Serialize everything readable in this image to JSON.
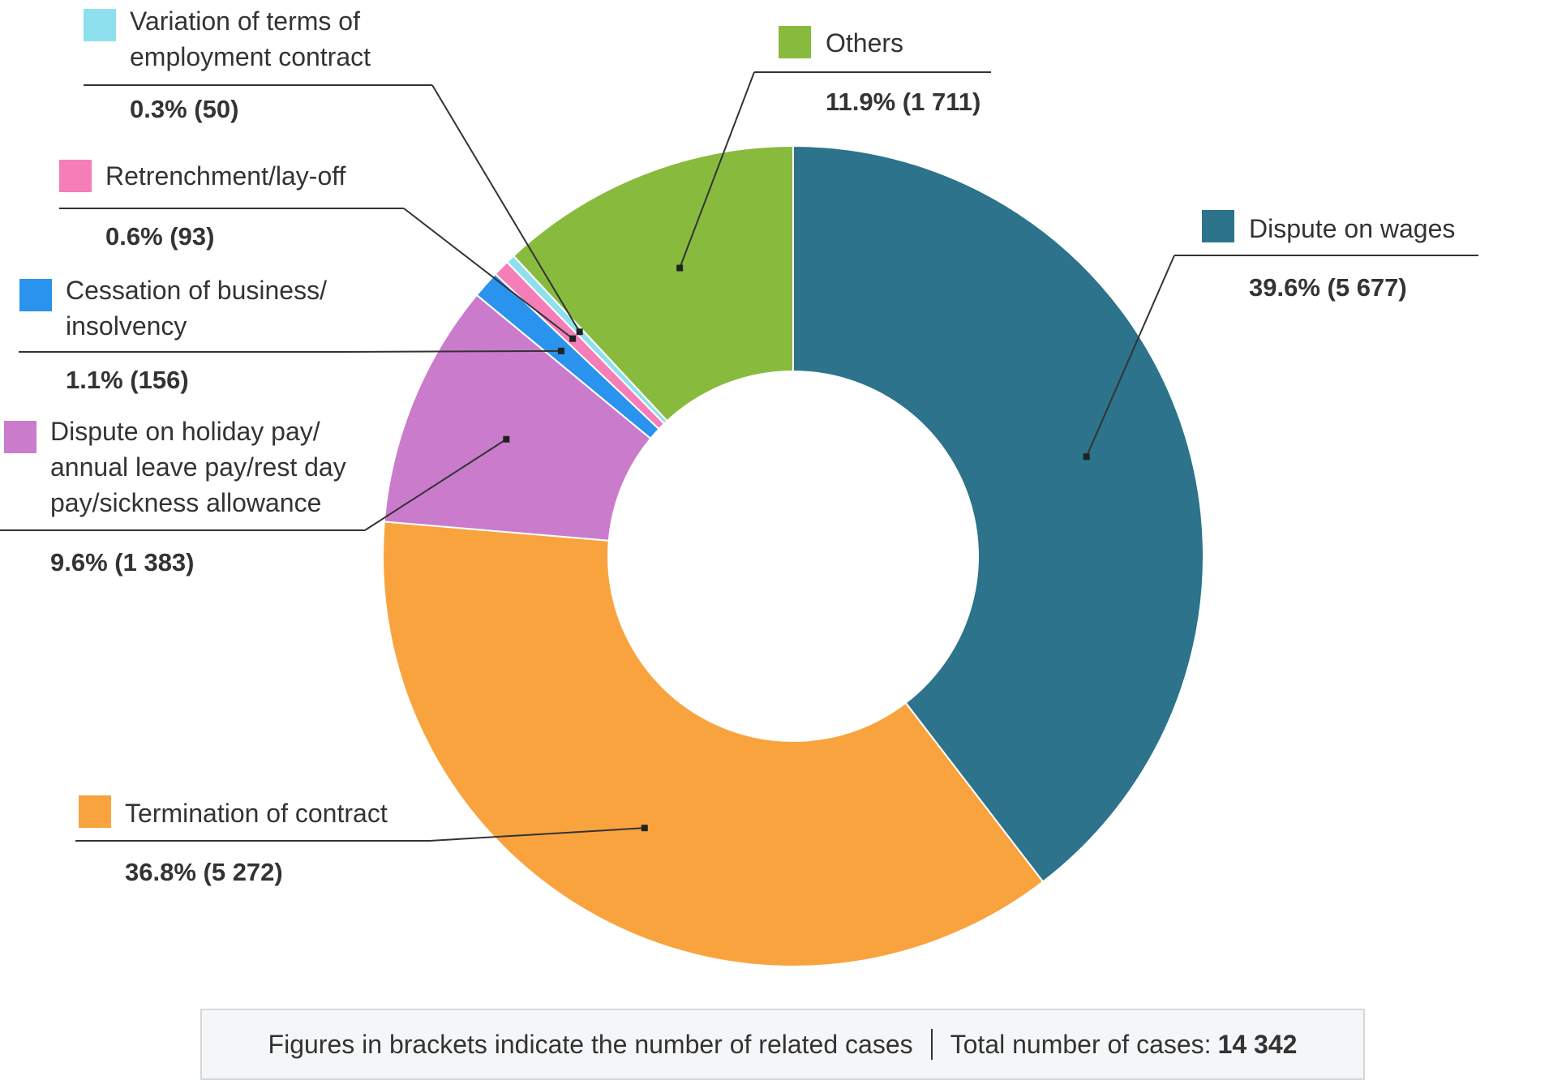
{
  "chart_data": {
    "type": "pie",
    "variant": "donut",
    "categories": [
      "Dispute on wages",
      "Termination of contract",
      "Dispute on holiday pay/ annual leave pay/rest day pay/sickness allowance",
      "Cessation of business/ insolvency",
      "Retrenchment/lay-off",
      "Variation of terms of employment contract",
      "Others"
    ],
    "values": [
      5677,
      5272,
      1383,
      156,
      93,
      50,
      1711
    ],
    "percentages": [
      39.6,
      36.8,
      9.6,
      1.1,
      0.6,
      0.3,
      11.9
    ],
    "value_labels": [
      "39.6% (5 677)",
      "36.8% (5 272)",
      "9.6% (1 383)",
      "1.1% (156)",
      "0.6% (93)",
      "0.3% (50)",
      "11.9% (1 711)"
    ],
    "colors": [
      "#2c738b",
      "#f9a33f",
      "#cb7bcb",
      "#2a93ee",
      "#f57eb8",
      "#8fe0ee",
      "#88bb3d"
    ],
    "start_angle_deg": 0,
    "direction": "clockwise",
    "legend_placement": "around"
  },
  "legend_lines": [
    [
      "Dispute on wages"
    ],
    [
      "Termination of contract"
    ],
    [
      "Dispute on holiday pay/",
      "annual leave pay/rest day",
      "pay/sickness allowance"
    ],
    [
      "Cessation of business/",
      "insolvency"
    ],
    [
      "Retrenchment/lay-off"
    ],
    [
      "Variation of terms of",
      "employment contract"
    ],
    [
      "Others"
    ]
  ],
  "footnote": {
    "text": "Figures in brackets indicate the number of related cases",
    "total_label": "Total number of cases:",
    "total_value": "14 342"
  }
}
